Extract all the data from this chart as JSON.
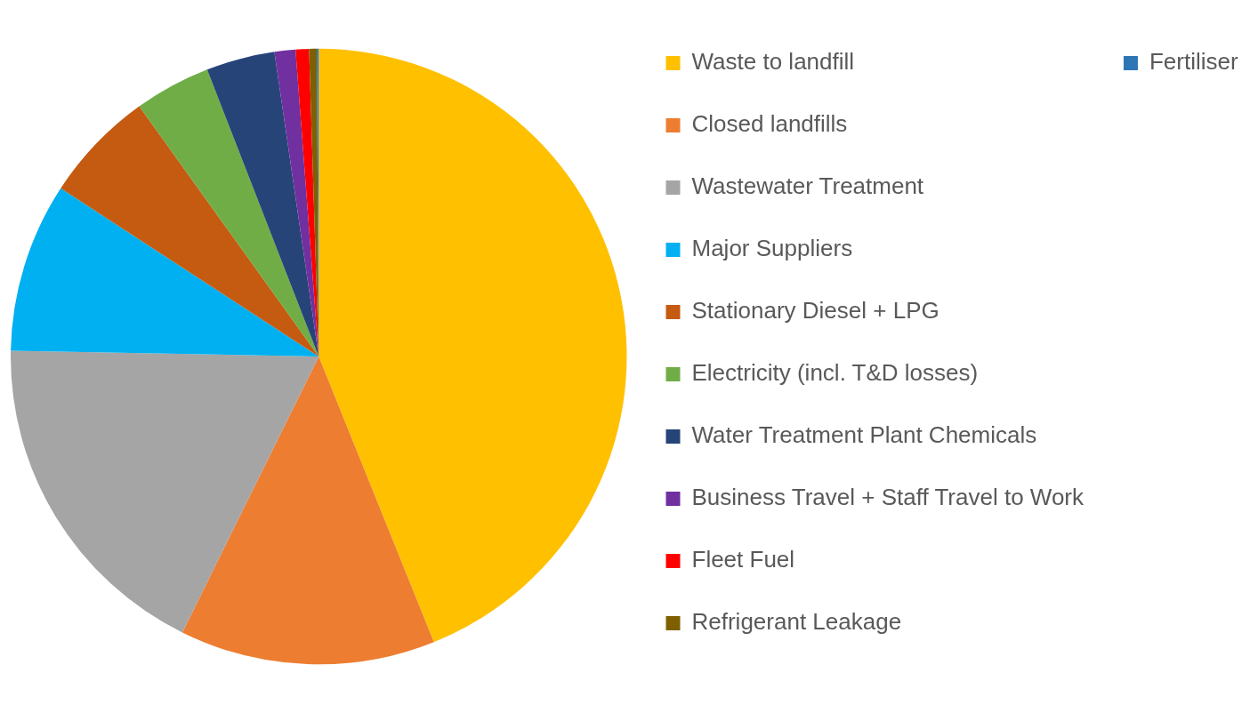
{
  "chart_data": {
    "type": "pie",
    "categories": [
      "Waste to landfill",
      "Closed landfills",
      "Wastewater Treatment",
      "Major Suppliers",
      "Stationary Diesel + LPG",
      "Electricity (incl. T&D losses)",
      "Water Treatment Plant Chemicals",
      "Business Travel + Staff Travel to Work",
      "Fleet Fuel",
      "Refrigerant Leakage",
      "Fertiliser"
    ],
    "values": [
      43.9,
      13.4,
      18,
      8.9,
      5.9,
      4.0,
      3.6,
      1.1,
      0.7,
      0.4,
      0.1
    ],
    "colors": [
      "#ffc000",
      "#ed7d31",
      "#a5a5a5",
      "#00b0f0",
      "#c55a11",
      "#70ad47",
      "#264478",
      "#7030a0",
      "#ff0000",
      "#7f6000",
      "#2e75b6"
    ],
    "legend": "right"
  }
}
